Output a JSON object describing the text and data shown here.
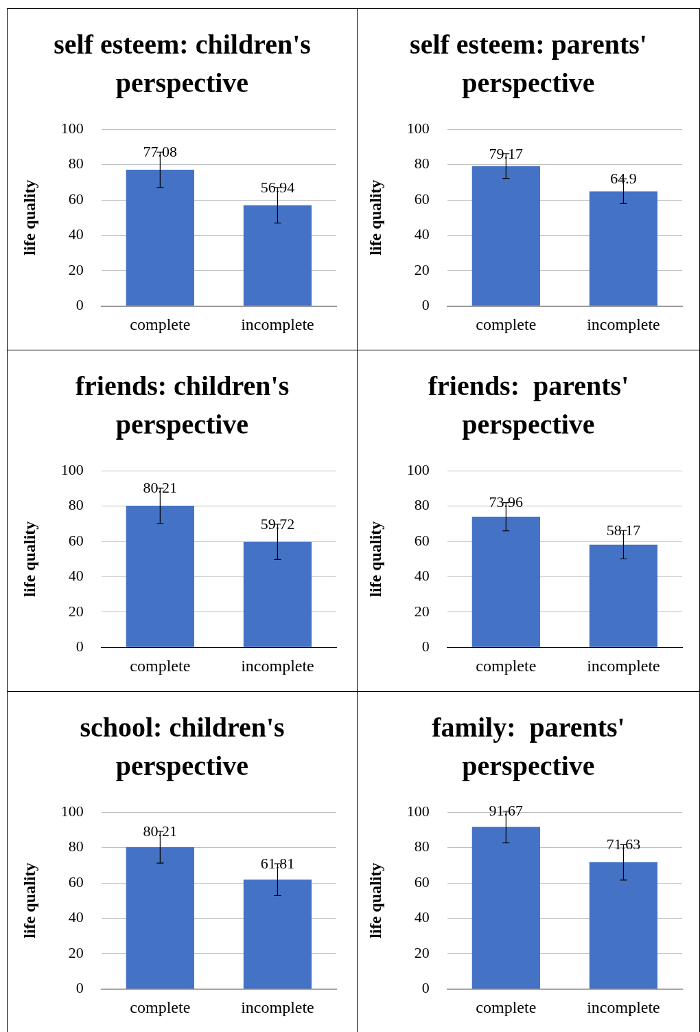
{
  "chart_data": [
    {
      "type": "bar",
      "title": "self esteem: children's perspective",
      "ylabel": "life quality",
      "categories": [
        "complete",
        "incomplete"
      ],
      "values": [
        77.08,
        56.94
      ],
      "errors": [
        10,
        10
      ],
      "color": "#4472c4",
      "ylim": [
        0,
        100
      ],
      "yticks": [
        0,
        20,
        40,
        60,
        80,
        100
      ],
      "grid": "y",
      "data_labels": true
    },
    {
      "type": "bar",
      "title": "self esteem: parents' perspective",
      "ylabel": "life quality",
      "categories": [
        "complete",
        "incomplete"
      ],
      "values": [
        79.17,
        64.9
      ],
      "errors": [
        7,
        7
      ],
      "color": "#4472c4",
      "ylim": [
        0,
        100
      ],
      "yticks": [
        0,
        20,
        40,
        60,
        80,
        100
      ],
      "grid": "y",
      "data_labels": true
    },
    {
      "type": "bar",
      "title": "friends: children's perspective",
      "ylabel": "life quality",
      "categories": [
        "complete",
        "incomplete"
      ],
      "values": [
        80.21,
        59.72
      ],
      "errors": [
        10,
        10
      ],
      "color": "#4472c4",
      "ylim": [
        0,
        100
      ],
      "yticks": [
        0,
        20,
        40,
        60,
        80,
        100
      ],
      "grid": "y",
      "data_labels": true
    },
    {
      "type": "bar",
      "title": "friends:  parents' perspective",
      "ylabel": "life quality",
      "categories": [
        "complete",
        "incomplete"
      ],
      "values": [
        73.96,
        58.17
      ],
      "errors": [
        8,
        8
      ],
      "color": "#4472c4",
      "ylim": [
        0,
        100
      ],
      "yticks": [
        0,
        20,
        40,
        60,
        80,
        100
      ],
      "grid": "y",
      "data_labels": true
    },
    {
      "type": "bar",
      "title": "school: children's perspective",
      "ylabel": "life quality",
      "categories": [
        "complete",
        "incomplete"
      ],
      "values": [
        80.21,
        61.81
      ],
      "errors": [
        9,
        9
      ],
      "color": "#4472c4",
      "ylim": [
        0,
        100
      ],
      "yticks": [
        0,
        20,
        40,
        60,
        80,
        100
      ],
      "grid": "y",
      "data_labels": true
    },
    {
      "type": "bar",
      "title": "family:  parents' perspective",
      "ylabel": "life quality",
      "categories": [
        "complete",
        "incomplete"
      ],
      "values": [
        91.67,
        71.63
      ],
      "errors": [
        9,
        10
      ],
      "color": "#4472c4",
      "ylim": [
        0,
        100
      ],
      "yticks": [
        0,
        20,
        40,
        60,
        80,
        100
      ],
      "grid": "y",
      "data_labels": true
    }
  ]
}
